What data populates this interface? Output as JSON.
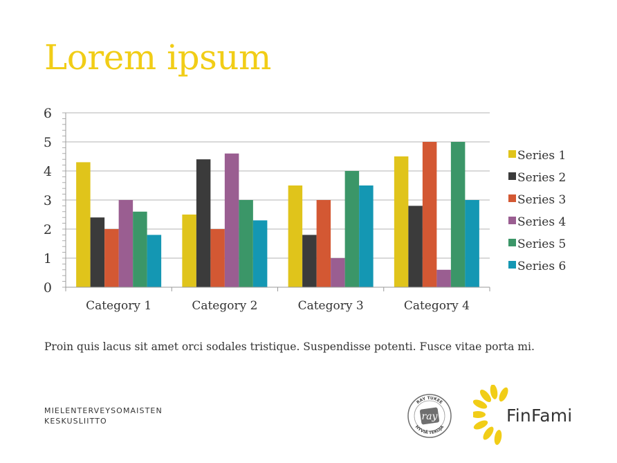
{
  "page": {
    "title": "Lorem ipsum",
    "body_text": "Proin quis lacus sit amet orci sodales tristique. Suspendisse potenti. Fusce vitae porta mi.",
    "org_name_line1": "MIELENTERVEYSOMAISTEN",
    "org_name_line2": "KESKUSLIITTO",
    "ray_logo": {
      "top_text": "RAY TUKEE",
      "center_text": "ray",
      "bottom_text": "HYVIÄ TEKOJA"
    },
    "brand_name": "FinFami",
    "brand_color": "#f1cd17"
  },
  "chart_data": {
    "type": "bar",
    "title": "",
    "xlabel": "",
    "ylabel": "",
    "ylim": [
      0,
      6
    ],
    "yticks": [
      0,
      1,
      2,
      3,
      4,
      5,
      6
    ],
    "grid": true,
    "legend_position": "right",
    "categories": [
      "Category 1",
      "Category 2",
      "Category 3",
      "Category 4"
    ],
    "series": [
      {
        "name": "Series 1",
        "color": "#e0c41b",
        "values": [
          4.3,
          2.5,
          3.5,
          4.5
        ]
      },
      {
        "name": "Series 2",
        "color": "#3b3b3b",
        "values": [
          2.4,
          4.4,
          1.8,
          2.8
        ]
      },
      {
        "name": "Series 3",
        "color": "#d35833",
        "values": [
          2.0,
          2.0,
          3.0,
          5.0
        ]
      },
      {
        "name": "Series 4",
        "color": "#9a5e91",
        "values": [
          3.0,
          4.6,
          1.0,
          0.6
        ]
      },
      {
        "name": "Series 5",
        "color": "#3b9668",
        "values": [
          2.6,
          3.0,
          4.0,
          5.0
        ]
      },
      {
        "name": "Series 6",
        "color": "#1497b3",
        "values": [
          1.8,
          2.3,
          3.5,
          3.0
        ]
      }
    ]
  }
}
